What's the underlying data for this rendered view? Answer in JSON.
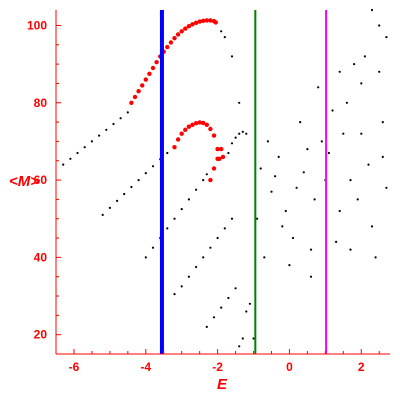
{
  "chart_data": {
    "type": "scatter",
    "title": "",
    "xlabel": "E",
    "ylabel": "<M>",
    "xlim": [
      -6.5,
      2.8
    ],
    "ylim": [
      15,
      104
    ],
    "x_ticks": [
      -6,
      -4,
      -2,
      0,
      2
    ],
    "x_tick_labels": [
      "-6",
      "-4",
      "-2",
      "0",
      "2"
    ],
    "y_ticks": [
      20,
      40,
      60,
      80,
      100
    ],
    "y_tick_labels": [
      "20",
      "40",
      "60",
      "80",
      "100"
    ],
    "grid": false,
    "axis_color": "#ff0000",
    "vertical_lines": [
      {
        "x": -3.55,
        "color": "#0000ff"
      },
      {
        "x": -0.95,
        "color": "#008000"
      },
      {
        "x": 1.02,
        "color": "#ff00ff"
      }
    ],
    "series": [
      {
        "color": "#ff0000",
        "points": [
          [
            -4.4,
            80.0
          ],
          [
            -4.3,
            81.5
          ],
          [
            -4.2,
            83.0
          ],
          [
            -4.1,
            84.5
          ],
          [
            -4.0,
            86.0
          ],
          [
            -3.9,
            87.5
          ],
          [
            -3.8,
            89.0
          ],
          [
            -3.7,
            90.5
          ],
          [
            -3.6,
            92.0
          ],
          [
            -3.5,
            93.2
          ],
          [
            -3.4,
            94.4
          ],
          [
            -3.3,
            95.6
          ],
          [
            -3.2,
            96.7
          ],
          [
            -3.1,
            97.7
          ],
          [
            -3.0,
            98.5
          ],
          [
            -2.9,
            99.2
          ],
          [
            -2.8,
            99.8
          ],
          [
            -2.7,
            100.3
          ],
          [
            -2.6,
            100.7
          ],
          [
            -2.5,
            101.0
          ],
          [
            -2.4,
            101.2
          ],
          [
            -2.3,
            101.3
          ],
          [
            -2.2,
            101.3
          ],
          [
            -2.1,
            101.1
          ],
          [
            -2.05,
            100.8
          ],
          [
            -3.2,
            68.5
          ],
          [
            -3.1,
            70.5
          ],
          [
            -3.0,
            72.0
          ],
          [
            -2.9,
            73.0
          ],
          [
            -2.8,
            73.8
          ],
          [
            -2.7,
            74.3
          ],
          [
            -2.6,
            74.7
          ],
          [
            -2.5,
            74.9
          ],
          [
            -2.4,
            74.8
          ],
          [
            -2.3,
            74.3
          ],
          [
            -2.2,
            73.2
          ],
          [
            -2.1,
            71.5
          ],
          [
            -2.0,
            68.0
          ],
          [
            -1.95,
            65.5
          ],
          [
            -2.2,
            60.0
          ],
          [
            -2.1,
            63.0
          ],
          [
            -2.0,
            65.5
          ],
          [
            -1.9,
            68.0
          ],
          [
            -1.85,
            66.0
          ]
        ]
      },
      {
        "color": "#000000",
        "points": [
          [
            -6.3,
            64.0
          ],
          [
            -6.1,
            65.5
          ],
          [
            -5.9,
            67.0
          ],
          [
            -5.7,
            68.5
          ],
          [
            -5.5,
            70.0
          ],
          [
            -5.3,
            71.5
          ],
          [
            -5.1,
            73.0
          ],
          [
            -4.9,
            74.5
          ],
          [
            -4.7,
            76.0
          ],
          [
            -4.5,
            77.5
          ],
          [
            -5.2,
            51.0
          ],
          [
            -5.0,
            52.8
          ],
          [
            -4.8,
            54.6
          ],
          [
            -4.6,
            56.4
          ],
          [
            -4.4,
            58.2
          ],
          [
            -4.2,
            60.0
          ],
          [
            -4.0,
            61.8
          ],
          [
            -3.8,
            63.6
          ],
          [
            -3.6,
            65.4
          ],
          [
            -3.4,
            67.0
          ],
          [
            -4.0,
            40.0
          ],
          [
            -3.8,
            42.5
          ],
          [
            -3.6,
            45.0
          ],
          [
            -3.4,
            47.5
          ],
          [
            -3.2,
            50.0
          ],
          [
            -3.0,
            52.5
          ],
          [
            -2.8,
            55.0
          ],
          [
            -2.6,
            57.5
          ],
          [
            -2.4,
            60.0
          ],
          [
            -2.3,
            61.5
          ],
          [
            -3.2,
            30.5
          ],
          [
            -3.0,
            32.5
          ],
          [
            -2.8,
            35.0
          ],
          [
            -2.6,
            37.5
          ],
          [
            -2.4,
            40.0
          ],
          [
            -2.2,
            42.5
          ],
          [
            -2.0,
            45.0
          ],
          [
            -1.8,
            47.5
          ],
          [
            -1.6,
            50.0
          ],
          [
            -2.3,
            22.0
          ],
          [
            -2.1,
            24.5
          ],
          [
            -1.9,
            27.0
          ],
          [
            -1.7,
            29.5
          ],
          [
            -1.5,
            32.0
          ],
          [
            -1.4,
            17.0
          ],
          [
            -1.3,
            19.0
          ],
          [
            -1.2,
            26.0
          ],
          [
            -1.1,
            28.0
          ],
          [
            -1.0,
            19.0
          ],
          [
            -1.4,
            80.0
          ],
          [
            -1.6,
            92.0
          ],
          [
            -1.8,
            97.0
          ],
          [
            -1.9,
            98.5
          ],
          [
            -1.7,
            67.0
          ],
          [
            -1.6,
            69.5
          ],
          [
            -1.5,
            71.0
          ],
          [
            -1.4,
            72.0
          ],
          [
            -1.3,
            72.5
          ],
          [
            -1.2,
            72.0
          ],
          [
            -0.8,
            63.0
          ],
          [
            -0.5,
            57.0
          ],
          [
            -0.2,
            48.0
          ],
          [
            0.1,
            45.0
          ],
          [
            0.4,
            62.0
          ],
          [
            0.7,
            55.0
          ],
          [
            1.1,
            67.0
          ],
          [
            1.4,
            52.0
          ],
          [
            1.7,
            60.0
          ],
          [
            2.0,
            72.0
          ],
          [
            2.3,
            48.0
          ],
          [
            2.6,
            75.0
          ],
          [
            -0.7,
            40.0
          ],
          [
            -0.3,
            66.0
          ],
          [
            0.2,
            58.0
          ],
          [
            0.6,
            42.0
          ],
          [
            0.9,
            70.0
          ],
          [
            1.3,
            44.0
          ],
          [
            1.6,
            80.0
          ],
          [
            1.9,
            55.0
          ],
          [
            2.2,
            64.0
          ],
          [
            2.5,
            88.0
          ],
          [
            -0.9,
            50.0
          ],
          [
            -0.1,
            52.0
          ],
          [
            0.5,
            68.0
          ],
          [
            1.0,
            60.0
          ],
          [
            1.5,
            72.0
          ],
          [
            2.0,
            85.0
          ],
          [
            2.4,
            40.0
          ],
          [
            2.7,
            58.0
          ],
          [
            0.8,
            84.0
          ],
          [
            1.2,
            78.0
          ],
          [
            1.8,
            90.0
          ],
          [
            2.1,
            92.0
          ],
          [
            2.5,
            100.0
          ],
          [
            2.3,
            104.0
          ],
          [
            2.7,
            97.0
          ],
          [
            0.0,
            38.0
          ],
          [
            0.6,
            35.0
          ],
          [
            1.7,
            42.0
          ],
          [
            -0.6,
            70.0
          ],
          [
            0.3,
            75.0
          ],
          [
            1.4,
            88.0
          ],
          [
            2.6,
            66.0
          ],
          [
            -0.4,
            61.0
          ]
        ]
      }
    ]
  }
}
